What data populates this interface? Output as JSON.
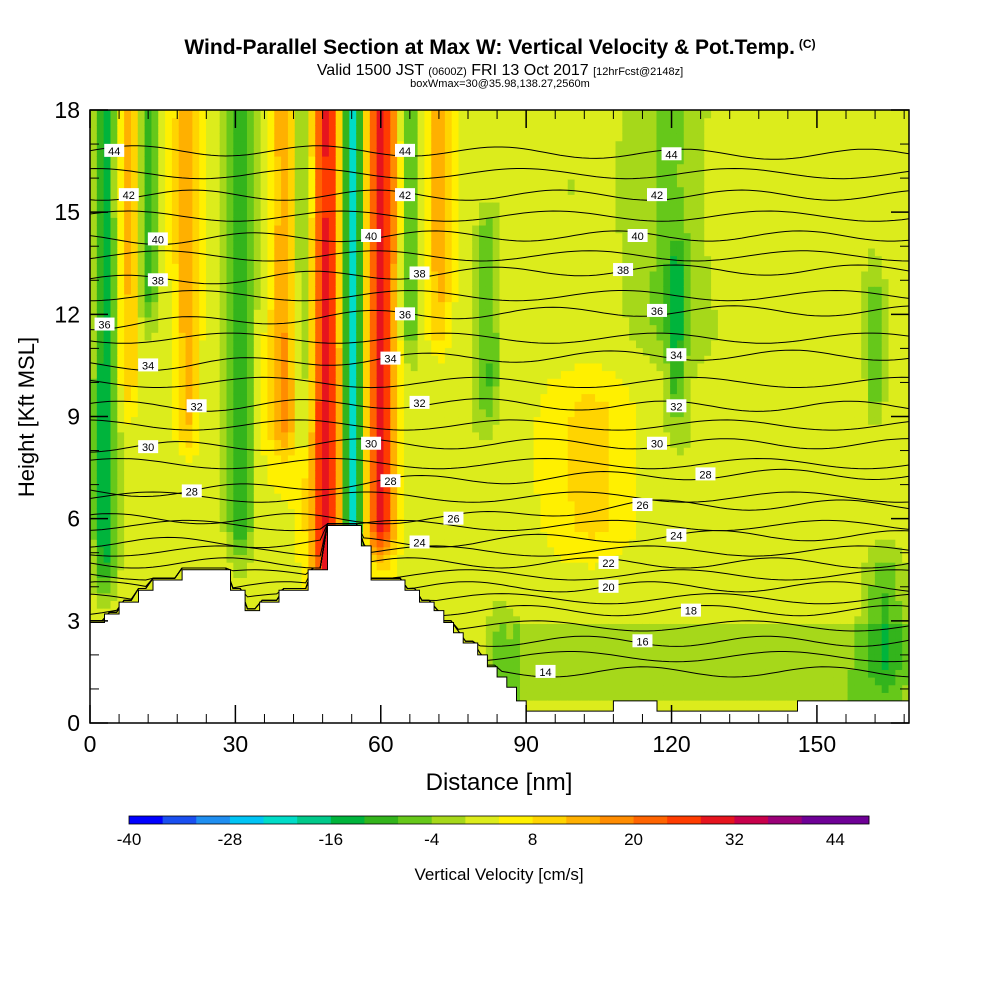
{
  "title": {
    "main": "Wind-Parallel Section at Max W: Vertical Velocity & Pot.Temp.",
    "copyright": "(C)",
    "valid_prefix": "Valid 1500 JST",
    "utc": "(0600Z)",
    "valid_date": "FRI 13 Oct 2017",
    "forecast": "[12hrFcst@2148z]",
    "box_info": "boxWmax=30@35.98,138.27,2560m"
  },
  "colors": {
    "palette": [
      "#0000ff",
      "#1a4ff0",
      "#1f8ef0",
      "#00c4f5",
      "#00dcc8",
      "#00c98a",
      "#00b43c",
      "#33b41c",
      "#66c81a",
      "#a6d81a",
      "#dcec1c",
      "#fff000",
      "#ffd400",
      "#ffb000",
      "#ff8c00",
      "#ff6400",
      "#ff3c00",
      "#e6141e",
      "#c8004b",
      "#9b0078",
      "#6e0096"
    ],
    "terrain": "#ffffff",
    "isentrope": "#000000"
  },
  "chart_data": {
    "type": "heatmap",
    "xlabel": "Distance [nm]",
    "ylabel": "Height [Kft MSL]",
    "xlim": [
      0,
      169
    ],
    "ylim": [
      0,
      18
    ],
    "xticks": [
      0,
      30,
      60,
      90,
      120,
      150
    ],
    "yticks": [
      0,
      3,
      6,
      9,
      12,
      15,
      18
    ],
    "colorbar": {
      "label": "Vertical Velocity [cm/s]",
      "min": -40,
      "max": 48,
      "step": 4,
      "tick_labels": [
        -40,
        -28,
        -16,
        -4,
        8,
        20,
        32,
        44
      ]
    },
    "terrain_height_kft": [
      [
        0,
        2.95
      ],
      [
        3,
        2.95
      ],
      [
        3,
        3.2
      ],
      [
        6,
        3.2
      ],
      [
        6,
        3.55
      ],
      [
        10,
        3.55
      ],
      [
        10,
        3.9
      ],
      [
        13,
        3.9
      ],
      [
        13,
        4.2
      ],
      [
        19,
        4.2
      ],
      [
        19,
        4.5
      ],
      [
        27,
        4.5
      ],
      [
        29,
        4.5
      ],
      [
        29,
        3.9
      ],
      [
        32,
        3.9
      ],
      [
        32,
        3.3
      ],
      [
        35,
        3.3
      ],
      [
        35,
        3.55
      ],
      [
        39,
        3.55
      ],
      [
        39,
        3.9
      ],
      [
        45,
        3.9
      ],
      [
        45,
        4.5
      ],
      [
        49,
        4.5
      ],
      [
        49,
        5.8
      ],
      [
        56,
        5.8
      ],
      [
        56,
        5.2
      ],
      [
        58,
        5.2
      ],
      [
        58,
        4.2
      ],
      [
        65,
        4.2
      ],
      [
        65,
        3.9
      ],
      [
        68,
        3.9
      ],
      [
        68,
        3.55
      ],
      [
        71,
        3.55
      ],
      [
        71,
        3.3
      ],
      [
        73,
        3.3
      ],
      [
        73,
        2.95
      ],
      [
        75,
        2.95
      ],
      [
        75,
        2.65
      ],
      [
        77,
        2.65
      ],
      [
        77,
        2.35
      ],
      [
        80,
        2.35
      ],
      [
        80,
        2.0
      ],
      [
        82,
        2.0
      ],
      [
        82,
        1.65
      ],
      [
        84,
        1.65
      ],
      [
        84,
        1.35
      ],
      [
        86,
        1.35
      ],
      [
        86,
        1.05
      ],
      [
        88,
        1.05
      ],
      [
        88,
        0.65
      ],
      [
        90,
        0.65
      ],
      [
        90,
        0.35
      ],
      [
        108,
        0.35
      ],
      [
        108,
        0.65
      ],
      [
        117,
        0.65
      ],
      [
        117,
        0.35
      ],
      [
        146,
        0.35
      ],
      [
        146,
        0.65
      ],
      [
        169,
        0.65
      ]
    ],
    "vertical_velocity_features": [
      {
        "sign": "updraft",
        "x_center": 49,
        "half_width": 3.5,
        "from_kft": 3,
        "to_kft": 18,
        "max_cm_s": 30
      },
      {
        "sign": "updraft",
        "x_center": 60,
        "half_width": 3.2,
        "from_kft": 6,
        "to_kft": 18,
        "max_cm_s": 30
      },
      {
        "sign": "updraft",
        "x_center": 40,
        "half_width": 3.0,
        "from_kft": 9,
        "to_kft": 18,
        "max_cm_s": 16
      },
      {
        "sign": "updraft",
        "x_center": 20,
        "half_width": 2.5,
        "from_kft": 9,
        "to_kft": 18,
        "max_cm_s": 14
      },
      {
        "sign": "updraft",
        "x_center": 8,
        "half_width": 2.0,
        "from_kft": 10,
        "to_kft": 18,
        "max_cm_s": 12
      },
      {
        "sign": "updraft",
        "x_center": 72,
        "half_width": 2.5,
        "from_kft": 12,
        "to_kft": 18,
        "max_cm_s": 12
      },
      {
        "sign": "updraft",
        "x_center": 104,
        "half_width": 8.0,
        "from_kft": 6,
        "to_kft": 9,
        "max_cm_s": 8
      },
      {
        "sign": "downdraft",
        "x_center": 54,
        "half_width": 2.3,
        "from_kft": 6,
        "to_kft": 18,
        "max_cm_s": -26
      },
      {
        "sign": "downdraft",
        "x_center": 3,
        "half_width": 2.3,
        "from_kft": 5,
        "to_kft": 18,
        "max_cm_s": -14
      },
      {
        "sign": "downdraft",
        "x_center": 12,
        "half_width": 2.0,
        "from_kft": 13,
        "to_kft": 18,
        "max_cm_s": -12
      },
      {
        "sign": "downdraft",
        "x_center": 31,
        "half_width": 2.6,
        "from_kft": 6,
        "to_kft": 18,
        "max_cm_s": -12
      },
      {
        "sign": "downdraft",
        "x_center": 44,
        "half_width": 2.0,
        "from_kft": 9,
        "to_kft": 18,
        "max_cm_s": -8
      },
      {
        "sign": "downdraft",
        "x_center": 66,
        "half_width": 2.0,
        "from_kft": 12,
        "to_kft": 18,
        "max_cm_s": -10
      },
      {
        "sign": "downdraft",
        "x_center": 82,
        "half_width": 2.5,
        "from_kft": 10,
        "to_kft": 14,
        "max_cm_s": -8
      },
      {
        "sign": "downdraft",
        "x_center": 121,
        "half_width": 2.0,
        "from_kft": 10,
        "to_kft": 13,
        "max_cm_s": -8
      },
      {
        "sign": "downdraft",
        "x_center": 162,
        "half_width": 2.0,
        "from_kft": 10,
        "to_kft": 12,
        "max_cm_s": -8
      },
      {
        "sign": "downdraft",
        "x_center": 164,
        "half_width": 4.0,
        "from_kft": 2,
        "to_kft": 4,
        "max_cm_s": -8
      },
      {
        "sign": "downdraft",
        "x_center": 120,
        "half_width": 8.0,
        "from_kft": 12,
        "to_kft": 18,
        "max_cm_s": -6
      },
      {
        "sign": "downdraft",
        "x_center": 85,
        "half_width": 3.0,
        "from_kft": 1,
        "to_kft": 2.2,
        "max_cm_s": -6
      }
    ],
    "isentrope_labels": [
      {
        "theta": 44,
        "x": 5,
        "y": 16.8
      },
      {
        "theta": 44,
        "x": 65,
        "y": 16.8
      },
      {
        "theta": 44,
        "x": 120,
        "y": 16.7
      },
      {
        "theta": 42,
        "x": 8,
        "y": 15.5
      },
      {
        "theta": 42,
        "x": 65,
        "y": 15.5
      },
      {
        "theta": 42,
        "x": 117,
        "y": 15.5
      },
      {
        "theta": 40,
        "x": 14,
        "y": 14.2
      },
      {
        "theta": 40,
        "x": 58,
        "y": 14.3
      },
      {
        "theta": 40,
        "x": 113,
        "y": 14.3
      },
      {
        "theta": 38,
        "x": 14,
        "y": 13.0
      },
      {
        "theta": 38,
        "x": 68,
        "y": 13.2
      },
      {
        "theta": 38,
        "x": 110,
        "y": 13.3
      },
      {
        "theta": 36,
        "x": 3,
        "y": 11.7
      },
      {
        "theta": 36,
        "x": 65,
        "y": 12.0
      },
      {
        "theta": 36,
        "x": 117,
        "y": 12.1
      },
      {
        "theta": 34,
        "x": 12,
        "y": 10.5
      },
      {
        "theta": 34,
        "x": 62,
        "y": 10.7
      },
      {
        "theta": 34,
        "x": 121,
        "y": 10.8
      },
      {
        "theta": 32,
        "x": 22,
        "y": 9.3
      },
      {
        "theta": 32,
        "x": 68,
        "y": 9.4
      },
      {
        "theta": 32,
        "x": 121,
        "y": 9.3
      },
      {
        "theta": 30,
        "x": 12,
        "y": 8.1
      },
      {
        "theta": 30,
        "x": 58,
        "y": 8.2
      },
      {
        "theta": 30,
        "x": 117,
        "y": 8.2
      },
      {
        "theta": 28,
        "x": 21,
        "y": 6.8
      },
      {
        "theta": 28,
        "x": 62,
        "y": 7.1
      },
      {
        "theta": 28,
        "x": 127,
        "y": 7.3
      },
      {
        "theta": 26,
        "x": 75,
        "y": 6.0
      },
      {
        "theta": 26,
        "x": 114,
        "y": 6.4
      },
      {
        "theta": 24,
        "x": 68,
        "y": 5.3
      },
      {
        "theta": 24,
        "x": 121,
        "y": 5.5
      },
      {
        "theta": 22,
        "x": 107,
        "y": 4.7
      },
      {
        "theta": 20,
        "x": 107,
        "y": 4.0
      },
      {
        "theta": 18,
        "x": 124,
        "y": 3.3
      },
      {
        "theta": 16,
        "x": 114,
        "y": 2.4
      },
      {
        "theta": 14,
        "x": 94,
        "y": 1.5
      }
    ]
  }
}
